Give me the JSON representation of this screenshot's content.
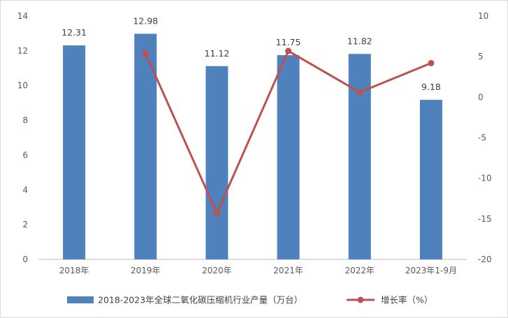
{
  "chart_data": {
    "type": "bar+line",
    "categories": [
      "2018年",
      "2019年",
      "2020年",
      "2021年",
      "2022年",
      "2023年1-9月"
    ],
    "series": [
      {
        "name": "2018-2023年全球二氧化碳压缩机行业产量（万台）",
        "type": "bar",
        "axis": "left",
        "color": "#4F81BD",
        "values": [
          12.31,
          12.98,
          11.12,
          11.75,
          11.82,
          9.18
        ],
        "labels": [
          "12.31",
          "12.98",
          "11.12",
          "11.75",
          "11.82",
          "9.18"
        ]
      },
      {
        "name": "增长率（%）",
        "type": "line",
        "axis": "right",
        "color": "#C0504D",
        "values": [
          null,
          5.4,
          -14.3,
          5.7,
          0.6,
          4.2
        ]
      }
    ],
    "y_left": {
      "min": 0,
      "max": 14,
      "step": 2,
      "ticks": [
        "0",
        "2",
        "4",
        "6",
        "8",
        "10",
        "12",
        "14"
      ]
    },
    "y_right": {
      "min": -20,
      "max": 10,
      "step": 5,
      "ticks": [
        "-20",
        "-15",
        "-10",
        "-5",
        "0",
        "5",
        "10"
      ]
    },
    "grid": false,
    "legend": "bottom"
  }
}
